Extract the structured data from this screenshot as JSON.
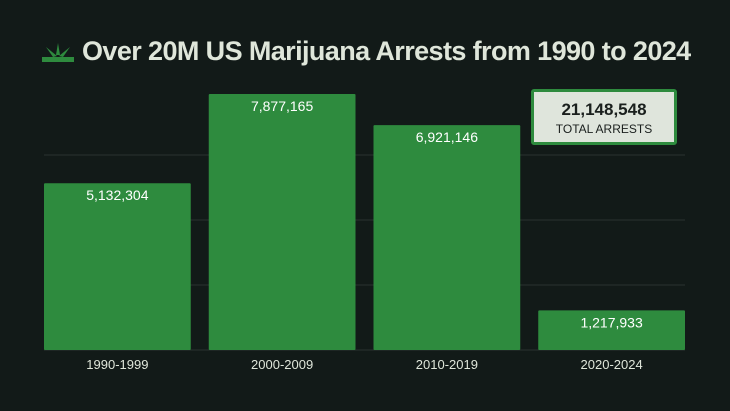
{
  "title": "Over 20M US Marijuana Arrests from 1990 to 2024",
  "icon": "cannabis-leaf-icon",
  "total": {
    "value": "21,148,548",
    "label": "TOTAL ARRESTS"
  },
  "colors": {
    "background": "#121a18",
    "bar": "#2e8b3e",
    "text": "#dfe6da"
  },
  "chart_data": {
    "type": "bar",
    "title": "Over 20M US Marijuana Arrests from 1990 to 2024",
    "categories": [
      "1990-1999",
      "2000-2009",
      "2010-2019",
      "2020-2024"
    ],
    "values": [
      5132304,
      7877165,
      6921146,
      1217933
    ],
    "data_labels": [
      "5,132,304",
      "7,877,165",
      "6,921,146",
      "1,217,933"
    ],
    "xlabel": "",
    "ylabel": "",
    "ylim": [
      0,
      8000000
    ],
    "gridlines": [
      2000000,
      4000000,
      6000000
    ],
    "grid": true,
    "legend": "none"
  }
}
